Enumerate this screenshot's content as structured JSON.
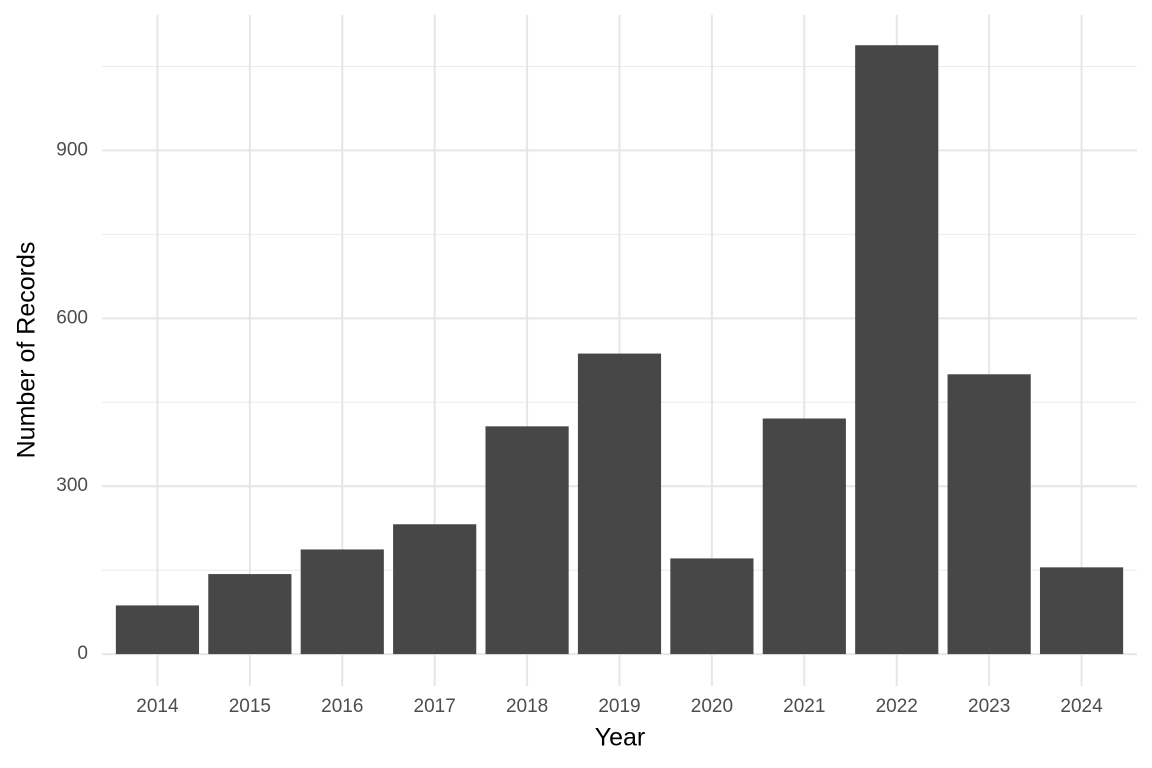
{
  "chart_data": {
    "type": "bar",
    "x_label": "Year",
    "y_label": "Number of Records",
    "categories": [
      "2014",
      "2015",
      "2016",
      "2017",
      "2018",
      "2019",
      "2020",
      "2021",
      "2022",
      "2023",
      "2024"
    ],
    "values": [
      87,
      143,
      187,
      232,
      407,
      537,
      171,
      421,
      1088,
      500,
      155
    ],
    "color": "#474747",
    "ylim": [
      -57,
      1142
    ],
    "yticks": [
      0,
      300,
      600,
      900
    ],
    "minor_yticks": [
      150,
      450,
      750,
      1050
    ],
    "grid": true
  }
}
